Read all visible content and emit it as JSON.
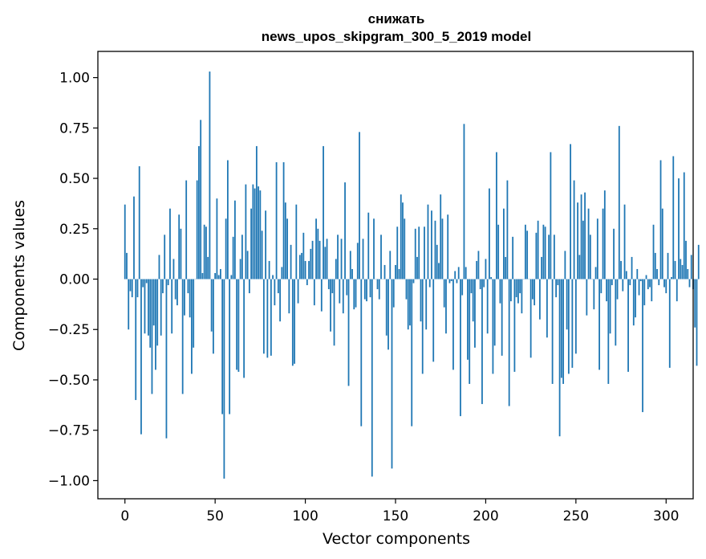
{
  "colors": {
    "bar": "#1f77b4",
    "axes": "#000000",
    "background": "#ffffff"
  },
  "chart_data": {
    "type": "bar",
    "title": "снижать",
    "subtitle": "news_upos_skipgram_300_5_2019 model",
    "xlabel": "Vector components",
    "ylabel": "Components values",
    "xlim": [
      -15,
      315
    ],
    "ylim": [
      -1.09,
      1.13
    ],
    "xticks": [
      0,
      50,
      100,
      150,
      200,
      250,
      300
    ],
    "xtick_labels": [
      "0",
      "50",
      "100",
      "150",
      "200",
      "250",
      "300"
    ],
    "yticks": [
      1.0,
      0.75,
      0.5,
      0.25,
      0.0,
      -0.25,
      -0.5,
      -0.75,
      -1.0
    ],
    "ytick_labels": [
      "1.00",
      "0.75",
      "0.50",
      "0.25",
      "0.00",
      "−0.25",
      "−0.50",
      "−0.75",
      "−1.00"
    ],
    "grid": false,
    "values": [
      0.37,
      0.13,
      -0.25,
      -0.06,
      -0.09,
      0.41,
      -0.6,
      -0.09,
      0.56,
      -0.77,
      -0.04,
      -0.27,
      -0.02,
      -0.28,
      -0.34,
      -0.57,
      -0.23,
      -0.45,
      -0.33,
      0.12,
      -0.28,
      -0.07,
      0.22,
      -0.79,
      -0.03,
      0.35,
      -0.27,
      0.1,
      -0.1,
      -0.13,
      0.32,
      0.25,
      -0.57,
      -0.18,
      0.49,
      -0.07,
      -0.19,
      -0.47,
      -0.34,
      0.0,
      0.49,
      0.66,
      0.79,
      0.03,
      0.27,
      0.26,
      0.11,
      1.03,
      -0.26,
      -0.37,
      0.03,
      0.4,
      0.02,
      0.05,
      -0.67,
      -0.99,
      0.3,
      0.59,
      -0.67,
      0.02,
      0.21,
      0.39,
      -0.45,
      -0.46,
      0.1,
      0.22,
      -0.49,
      0.47,
      0.14,
      -0.07,
      0.35,
      0.47,
      0.45,
      0.66,
      0.46,
      0.44,
      0.24,
      -0.37,
      0.34,
      -0.39,
      0.09,
      -0.38,
      0.02,
      -0.13,
      0.58,
      -0.07,
      -0.21,
      0.06,
      0.58,
      0.38,
      0.3,
      -0.17,
      0.17,
      -0.43,
      -0.42,
      0.37,
      -0.12,
      0.12,
      0.13,
      0.23,
      0.09,
      -0.03,
      0.09,
      0.15,
      0.19,
      -0.13,
      0.3,
      0.25,
      0.19,
      -0.16,
      0.66,
      0.16,
      0.2,
      -0.05,
      -0.26,
      -0.07,
      -0.33,
      0.1,
      0.22,
      -0.12,
      0.2,
      -0.17,
      0.48,
      -0.08,
      -0.53,
      0.14,
      0.05,
      -0.15,
      -0.14,
      0.18,
      0.73,
      -0.73,
      0.2,
      -0.1,
      -0.11,
      0.33,
      -0.09,
      -0.98,
      0.3,
      0.0,
      -0.05,
      -0.1,
      0.22,
      0.0,
      0.07,
      -0.28,
      -0.35,
      0.14,
      -0.94,
      -0.14,
      0.07,
      0.26,
      0.05,
      0.42,
      0.38,
      0.3,
      -0.1,
      -0.25,
      -0.23,
      -0.73,
      -0.02,
      0.25,
      0.11,
      0.26,
      -0.21,
      -0.47,
      0.26,
      -0.25,
      0.37,
      -0.04,
      0.34,
      -0.41,
      0.29,
      0.17,
      0.08,
      0.42,
      0.3,
      -0.14,
      -0.27,
      0.32,
      -0.02,
      -0.01,
      -0.45,
      0.04,
      -0.02,
      0.06,
      -0.68,
      -0.08,
      0.77,
      0.06,
      -0.4,
      -0.52,
      -0.07,
      -0.21,
      -0.34,
      0.09,
      0.14,
      -0.05,
      -0.62,
      -0.04,
      0.1,
      -0.27,
      0.45,
      0.01,
      -0.47,
      -0.33,
      0.63,
      0.27,
      -0.12,
      -0.38,
      0.35,
      0.11,
      0.49,
      -0.63,
      -0.11,
      0.21,
      -0.46,
      -0.09,
      -0.12,
      -0.07,
      -0.17,
      0.0,
      0.27,
      0.24,
      0.0,
      -0.39,
      -0.1,
      -0.13,
      0.23,
      0.29,
      -0.2,
      0.11,
      0.27,
      0.26,
      -0.29,
      0.22,
      0.63,
      -0.52,
      0.22,
      -0.09,
      -0.03,
      -0.78,
      -0.49,
      -0.52,
      0.14,
      -0.25,
      -0.47,
      0.67,
      -0.44,
      0.49,
      -0.37,
      0.38,
      0.12,
      0.42,
      0.29,
      0.43,
      -0.18,
      0.35,
      0.22,
      0.0,
      -0.15,
      0.06,
      0.3,
      -0.45,
      -0.07,
      0.35,
      0.44,
      -0.11,
      -0.52,
      -0.27,
      -0.03,
      0.25,
      -0.33,
      -0.1,
      0.76,
      0.09,
      -0.06,
      0.37,
      0.04,
      -0.46,
      -0.03,
      0.11,
      -0.23,
      -0.19,
      0.05,
      -0.08,
      -0.01,
      -0.66,
      -0.13,
      0.02,
      -0.05,
      -0.04,
      -0.11,
      0.27,
      0.13,
      0.05,
      -0.03,
      0.59,
      0.35,
      -0.04,
      -0.07,
      0.13,
      -0.44,
      0.01,
      0.61,
      0.09,
      -0.11,
      0.5,
      0.1,
      0.07,
      0.53,
      0.19,
      0.05,
      -0.04,
      0.12,
      -0.05,
      -0.24,
      -0.43,
      0.17
    ]
  }
}
